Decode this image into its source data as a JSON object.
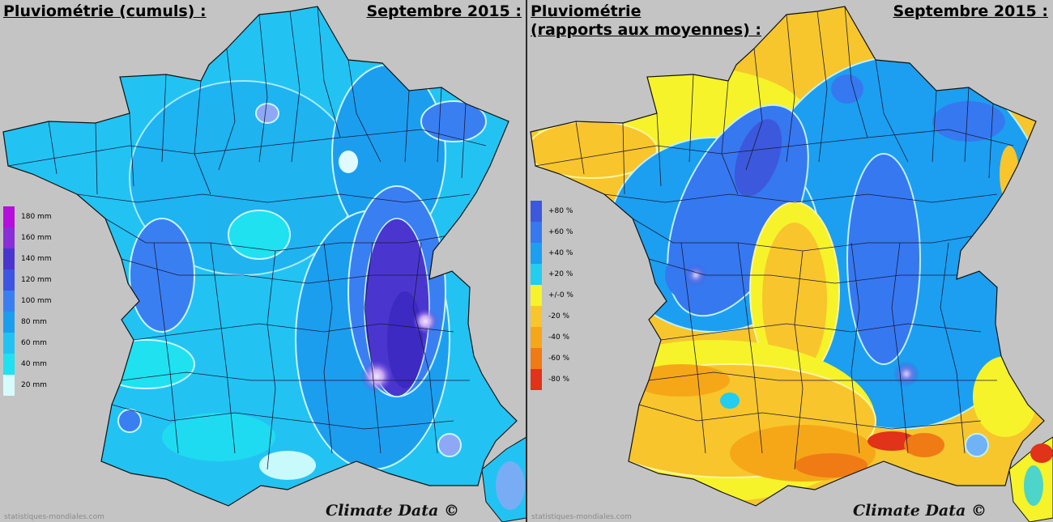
{
  "left_map": {
    "title": "Pluviométrie (cumuls) :",
    "period": "Septembre 2015 :",
    "legend": [
      {
        "label": "180 mm",
        "color": "#b60edc"
      },
      {
        "label": "160 mm",
        "color": "#8a2ed8"
      },
      {
        "label": "140 mm",
        "color": "#4a36cf"
      },
      {
        "label": "120 mm",
        "color": "#3d55e0"
      },
      {
        "label": "100 mm",
        "color": "#3a7ff2"
      },
      {
        "label": "80 mm",
        "color": "#1c9eef"
      },
      {
        "label": "60 mm",
        "color": "#22c3f2"
      },
      {
        "label": "40 mm",
        "color": "#1fe1f0"
      },
      {
        "label": "20 mm",
        "color": "#d6fbfb"
      }
    ],
    "credit": "Climate Data ©",
    "source": "statistiques-mondiales.com"
  },
  "right_map": {
    "title_line1": "Pluviométrie",
    "title_line2": "(rapports aux moyennes) :",
    "period": "Septembre 2015 :",
    "legend": [
      {
        "label": "+80 %",
        "color": "#3c58dc"
      },
      {
        "label": "+60 %",
        "color": "#3678f0"
      },
      {
        "label": "+40 %",
        "color": "#1c9ff0"
      },
      {
        "label": "+20 %",
        "color": "#22cdf0"
      },
      {
        "label": "+/-0 %",
        "color": "#f6f32a"
      },
      {
        "label": "-20 %",
        "color": "#f8c52c"
      },
      {
        "label": "-40 %",
        "color": "#f6a718"
      },
      {
        "label": "-60 %",
        "color": "#f07b14"
      },
      {
        "label": "-80 %",
        "color": "#e1321a"
      }
    ],
    "credit": "Climate Data ©",
    "source": "statistiques-mondiales.com"
  }
}
